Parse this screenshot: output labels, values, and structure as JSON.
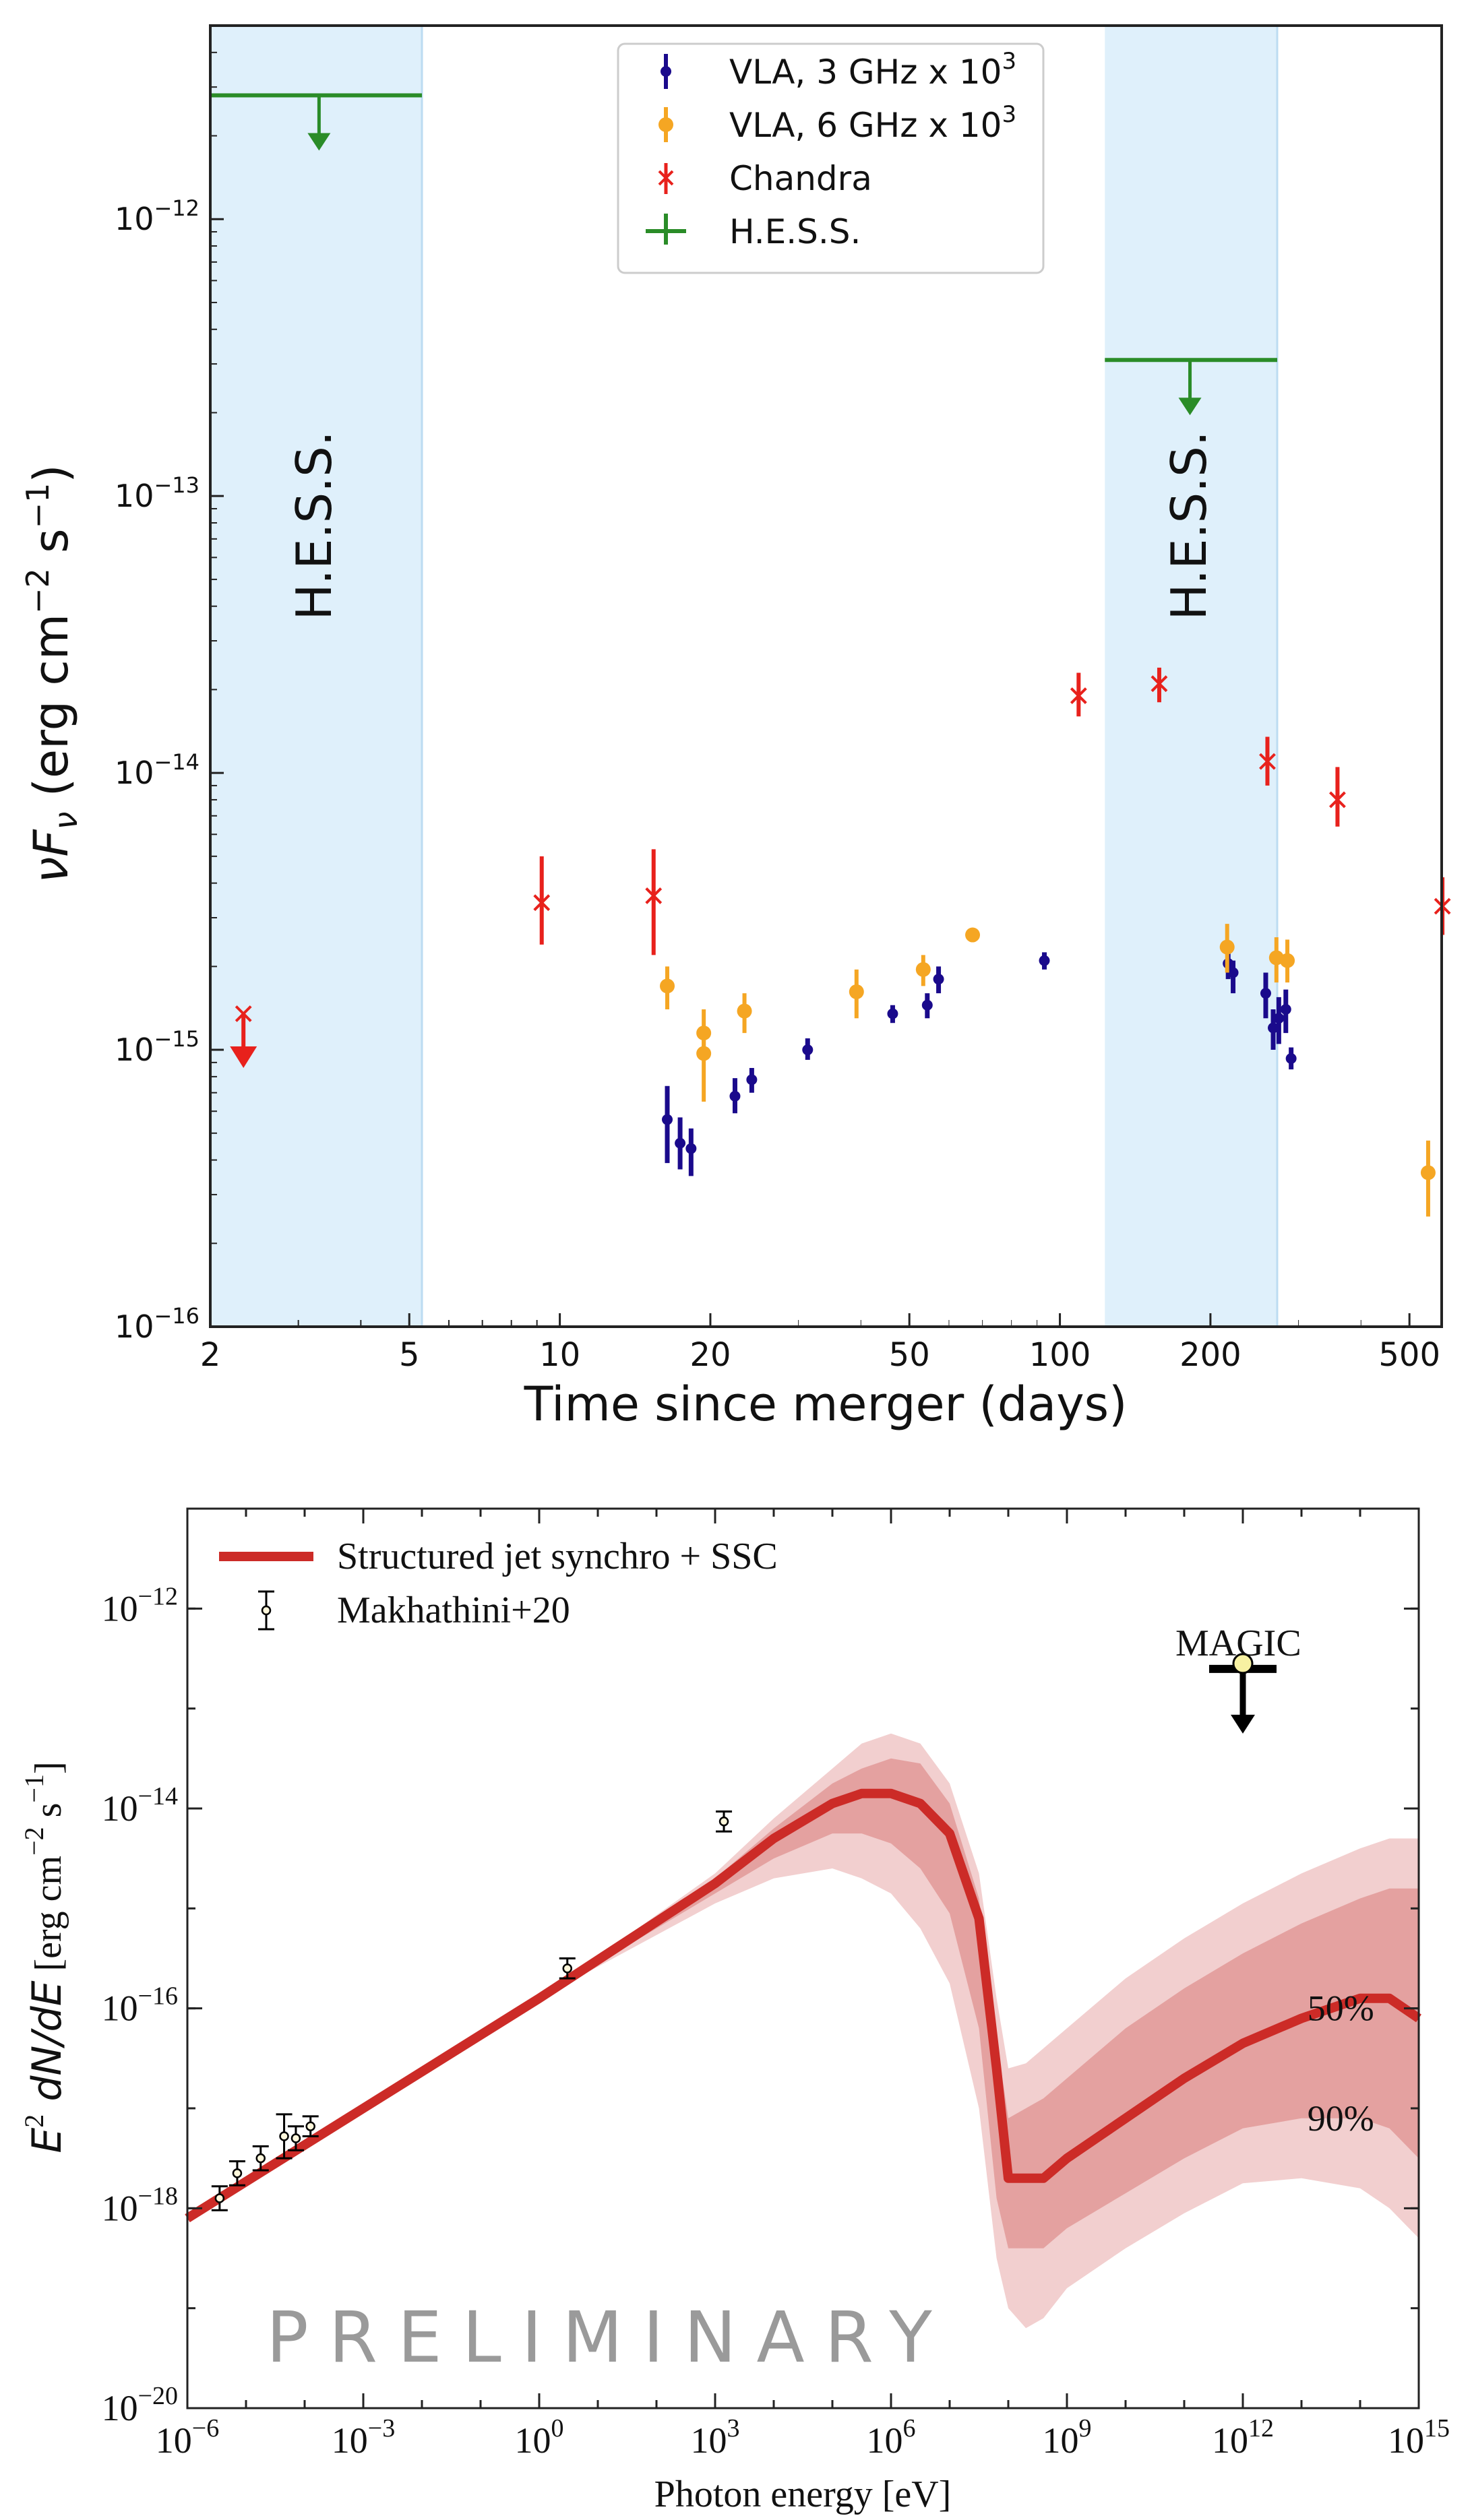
{
  "chart_data": [
    {
      "type": "scatter",
      "xlabel": "Time since merger (days)",
      "ylabel_main": "νF",
      "ylabel_sub": "ν",
      "ylabel_units": " (erg cm",
      "ylabel_units_exp": "−2",
      "ylabel_units_tail": " s",
      "ylabel_units_exp2": "−1",
      "ylabel_close": ")",
      "x_scale": "log",
      "y_scale": "log",
      "xlim": [
        2,
        580
      ],
      "ylim": [
        1e-16,
        5e-12
      ],
      "xticks": [
        {
          "v": 2,
          "label": "2"
        },
        {
          "v": 5,
          "label": "5"
        },
        {
          "v": 10,
          "label": "10"
        },
        {
          "v": 20,
          "label": "20"
        },
        {
          "v": 50,
          "label": "50"
        },
        {
          "v": 100,
          "label": "100"
        },
        {
          "v": 200,
          "label": "200"
        },
        {
          "v": 500,
          "label": "500"
        }
      ],
      "yticks": [
        {
          "v": 1e-16,
          "base": "10",
          "exp": "−16"
        },
        {
          "v": 1e-15,
          "base": "10",
          "exp": "−15"
        },
        {
          "v": 1e-14,
          "base": "10",
          "exp": "−14"
        },
        {
          "v": 1e-13,
          "base": "10",
          "exp": "−13"
        },
        {
          "v": 1e-12,
          "base": "10",
          "exp": "−12"
        }
      ],
      "shaded_windows": [
        {
          "x0": 2.0,
          "x1": 5.3,
          "label": "H.E.S.S."
        },
        {
          "x0": 123,
          "x1": 272,
          "label": "H.E.S.S."
        }
      ],
      "legend_position": "upper center",
      "series": [
        {
          "name": "VLA, 3 GHz x 10",
          "name_sup": "3",
          "color": "#1a0a8c",
          "marker": "circle-small",
          "points": [
            {
              "x": 16.4,
              "y": 5.6e-16,
              "lo": 3.9e-16,
              "hi": 7.4e-16
            },
            {
              "x": 17.4,
              "y": 4.6e-16,
              "lo": 3.7e-16,
              "hi": 5.7e-16
            },
            {
              "x": 18.3,
              "y": 4.4e-16,
              "lo": 3.5e-16,
              "hi": 5.2e-16
            },
            {
              "x": 22.4,
              "y": 6.8e-16,
              "lo": 5.9e-16,
              "hi": 7.9e-16
            },
            {
              "x": 24.2,
              "y": 7.8e-16,
              "lo": 7e-16,
              "hi": 8.6e-16
            },
            {
              "x": 31.3,
              "y": 1e-15,
              "lo": 9.2e-16,
              "hi": 1.1e-15
            },
            {
              "x": 46.3,
              "y": 1.35e-15,
              "lo": 1.25e-15,
              "hi": 1.45e-15
            },
            {
              "x": 54.3,
              "y": 1.45e-15,
              "lo": 1.3e-15,
              "hi": 1.6e-15
            },
            {
              "x": 57.2,
              "y": 1.8e-15,
              "lo": 1.6e-15,
              "hi": 2e-15
            },
            {
              "x": 93.1,
              "y": 2.1e-15,
              "lo": 1.95e-15,
              "hi": 2.25e-15
            },
            {
              "x": 217,
              "y": 2.05e-15,
              "lo": 1.8e-15,
              "hi": 2.25e-15
            },
            {
              "x": 222,
              "y": 1.9e-15,
              "lo": 1.6e-15,
              "hi": 2.1e-15
            },
            {
              "x": 258,
              "y": 1.6e-15,
              "lo": 1.3e-15,
              "hi": 1.9e-15
            },
            {
              "x": 267,
              "y": 1.2e-15,
              "lo": 1e-15,
              "hi": 1.4e-15
            },
            {
              "x": 274,
              "y": 1.3e-15,
              "lo": 1.05e-15,
              "hi": 1.55e-15
            },
            {
              "x": 283,
              "y": 1.4e-15,
              "lo": 1.15e-15,
              "hi": 1.65e-15
            },
            {
              "x": 290,
              "y": 9.3e-16,
              "lo": 8.5e-16,
              "hi": 1.02e-15
            }
          ]
        },
        {
          "name": "VLA, 6 GHz x 10",
          "name_sup": "3",
          "color": "#f5a623",
          "marker": "circle",
          "points": [
            {
              "x": 16.4,
              "y": 1.7e-15,
              "lo": 1.4e-15,
              "hi": 2e-15
            },
            {
              "x": 19.4,
              "y": 1.15e-15,
              "lo": 9.5e-16,
              "hi": 1.4e-15
            },
            {
              "x": 19.4,
              "y": 9.7e-16,
              "lo": 6.5e-16,
              "hi": 1.2e-15
            },
            {
              "x": 23.4,
              "y": 1.38e-15,
              "lo": 1.15e-15,
              "hi": 1.6e-15
            },
            {
              "x": 39.2,
              "y": 1.62e-15,
              "lo": 1.3e-15,
              "hi": 1.95e-15
            },
            {
              "x": 53.3,
              "y": 1.95e-15,
              "lo": 1.7e-15,
              "hi": 2.2e-15
            },
            {
              "x": 66.9,
              "y": 2.6e-15,
              "lo": 2.45e-15,
              "hi": 2.75e-15
            },
            {
              "x": 216,
              "y": 2.35e-15,
              "lo": 1.9e-15,
              "hi": 2.85e-15
            },
            {
              "x": 271,
              "y": 2.15e-15,
              "lo": 1.75e-15,
              "hi": 2.55e-15
            },
            {
              "x": 285,
              "y": 2.1e-15,
              "lo": 1.75e-15,
              "hi": 2.5e-15
            },
            {
              "x": 545,
              "y": 3.6e-16,
              "lo": 2.5e-16,
              "hi": 4.7e-16
            }
          ]
        },
        {
          "name": "Chandra",
          "color": "#e8211c",
          "marker": "x",
          "points": [
            {
              "x": 2.33,
              "y": 1.25e-15,
              "lo": 9.2e-16,
              "hi": 1.35e-15,
              "upper_limit": true
            },
            {
              "x": 9.2,
              "y": 3.4e-15,
              "lo": 2.4e-15,
              "hi": 5e-15
            },
            {
              "x": 15.4,
              "y": 3.6e-15,
              "lo": 2.2e-15,
              "hi": 5.3e-15
            },
            {
              "x": 109,
              "y": 1.9e-14,
              "lo": 1.6e-14,
              "hi": 2.3e-14
            },
            {
              "x": 158,
              "y": 2.1e-14,
              "lo": 1.8e-14,
              "hi": 2.4e-14
            },
            {
              "x": 260,
              "y": 1.1e-14,
              "lo": 9e-15,
              "hi": 1.35e-14
            },
            {
              "x": 359,
              "y": 8e-15,
              "lo": 6.4e-15,
              "hi": 1.05e-14
            },
            {
              "x": 582,
              "y": 3.3e-15,
              "lo": 2.6e-15,
              "hi": 4.2e-15
            }
          ]
        },
        {
          "name": "H.E.S.S.",
          "color": "#2a8c28",
          "marker": "upper-limit",
          "points": [
            {
              "x0": 2.0,
              "x1": 5.3,
              "x": 3.3,
              "y": 2.8e-12
            },
            {
              "x0": 123,
              "x1": 272,
              "x": 182,
              "y": 3.1e-13
            }
          ]
        }
      ]
    },
    {
      "type": "line",
      "xlabel": "Photon energy [eV]",
      "ylabel_a": "E",
      "ylabel_a_sup": "2",
      "ylabel_b": " dN/dE",
      "ylabel_units": " [erg cm",
      "ylabel_units_exp": "−2",
      "ylabel_units_tail": " s",
      "ylabel_units_exp2": "−1",
      "ylabel_close": "]",
      "x_scale": "log",
      "y_scale": "log",
      "xlim_exp": [
        -6,
        15
      ],
      "ylim_exp": [
        -20,
        -11
      ],
      "xticks": [
        {
          "e": -6,
          "base": "10",
          "exp": "−6"
        },
        {
          "e": -3,
          "base": "10",
          "exp": "−3"
        },
        {
          "e": 0,
          "base": "10",
          "exp": "0"
        },
        {
          "e": 3,
          "base": "10",
          "exp": "3"
        },
        {
          "e": 6,
          "base": "10",
          "exp": "6"
        },
        {
          "e": 9,
          "base": "10",
          "exp": "9"
        },
        {
          "e": 12,
          "base": "10",
          "exp": "12"
        },
        {
          "e": 15,
          "base": "10",
          "exp": "15"
        }
      ],
      "yticks": [
        {
          "e": -20,
          "base": "10",
          "exp": "−20"
        },
        {
          "e": -18,
          "base": "10",
          "exp": "−18"
        },
        {
          "e": -16,
          "base": "10",
          "exp": "−16"
        },
        {
          "e": -14,
          "base": "10",
          "exp": "−14"
        },
        {
          "e": -12,
          "base": "10",
          "exp": "−12"
        }
      ],
      "watermark": "PRELIMINARY",
      "band_labels": [
        {
          "text": "50%",
          "x_exp": 13.1,
          "y_exp": -16.0
        },
        {
          "text": "90%",
          "x_exp": 13.1,
          "y_exp": -17.1
        }
      ],
      "magic_label": "MAGIC",
      "magic_upper_limit": {
        "x_exp": 12.0,
        "y_exp": -12.55
      },
      "legend_position": "top-left",
      "series": [
        {
          "name": "Structured jet synchro + SSC",
          "color": "#cc2b27",
          "x_exp": [
            -6,
            -3,
            0,
            3,
            4,
            5,
            5.5,
            6,
            6.5,
            7,
            7.5,
            7.8,
            8.0,
            8.3,
            8.6,
            9,
            10,
            11,
            12,
            13,
            14,
            14.5,
            15
          ],
          "y_exp": [
            -18.1,
            -17.0,
            -15.9,
            -14.75,
            -14.3,
            -13.95,
            -13.85,
            -13.85,
            -13.95,
            -14.25,
            -15.1,
            -16.6,
            -17.7,
            -17.7,
            -17.7,
            -17.5,
            -17.1,
            -16.7,
            -16.35,
            -16.1,
            -15.9,
            -15.9,
            -16.1
          ],
          "band50_hi": [
            -18.1,
            -17.0,
            -15.9,
            -14.7,
            -14.2,
            -13.75,
            -13.6,
            -13.5,
            -13.55,
            -13.95,
            -14.9,
            -16.3,
            -17.1,
            -17.0,
            -16.9,
            -16.7,
            -16.2,
            -15.8,
            -15.45,
            -15.15,
            -14.9,
            -14.8,
            -14.8
          ],
          "band50_lo": [
            -18.1,
            -17.0,
            -15.9,
            -14.85,
            -14.5,
            -14.25,
            -14.25,
            -14.35,
            -14.6,
            -15.05,
            -16.2,
            -17.9,
            -18.4,
            -18.4,
            -18.4,
            -18.2,
            -17.85,
            -17.5,
            -17.2,
            -17.1,
            -17.1,
            -17.2,
            -17.5
          ],
          "band90_hi": [
            -18.1,
            -17.0,
            -15.9,
            -14.65,
            -14.1,
            -13.6,
            -13.35,
            -13.25,
            -13.35,
            -13.75,
            -14.65,
            -15.9,
            -16.6,
            -16.55,
            -16.4,
            -16.2,
            -15.7,
            -15.3,
            -14.95,
            -14.65,
            -14.4,
            -14.3,
            -14.3
          ],
          "band90_lo": [
            -18.1,
            -17.0,
            -15.9,
            -14.95,
            -14.7,
            -14.6,
            -14.7,
            -14.85,
            -15.2,
            -15.75,
            -17.0,
            -18.5,
            -19.0,
            -19.2,
            -19.1,
            -18.8,
            -18.4,
            -18.05,
            -17.75,
            -17.7,
            -17.8,
            -18.0,
            -18.3
          ]
        },
        {
          "name": "Makhathini+20",
          "color": "#000000",
          "marker": "open-circle",
          "points": [
            {
              "x_exp": -5.45,
              "y_exp": -17.9,
              "err": 0.12
            },
            {
              "x_exp": -5.15,
              "y_exp": -17.65,
              "err": 0.12
            },
            {
              "x_exp": -4.75,
              "y_exp": -17.5,
              "err": 0.12
            },
            {
              "x_exp": -4.35,
              "y_exp": -17.28,
              "err": 0.22
            },
            {
              "x_exp": -4.15,
              "y_exp": -17.3,
              "err": 0.12
            },
            {
              "x_exp": -3.9,
              "y_exp": -17.18,
              "err": 0.1
            },
            {
              "x_exp": 0.48,
              "y_exp": -15.6,
              "err": 0.1
            },
            {
              "x_exp": 3.15,
              "y_exp": -14.13,
              "err": 0.1
            }
          ]
        }
      ]
    }
  ]
}
